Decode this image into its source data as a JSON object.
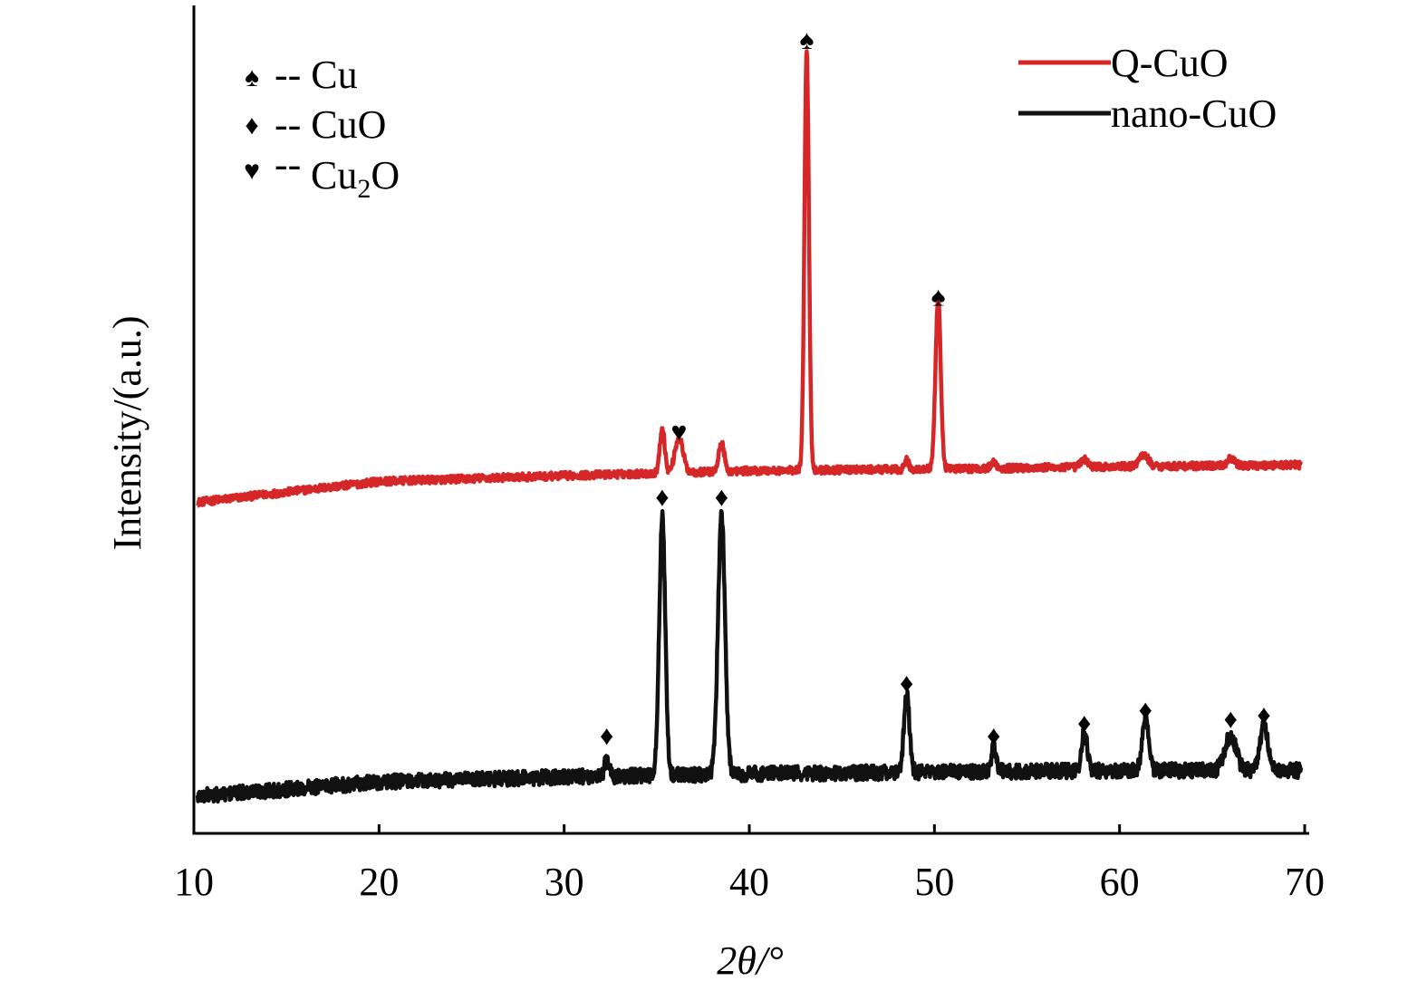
{
  "chart_data": {
    "type": "line",
    "xlabel": "2θ/°",
    "ylabel": "Intensity/(a.u.)",
    "xlim": [
      10,
      70
    ],
    "x_ticks": [
      "10",
      "20",
      "30",
      "40",
      "50",
      "60",
      "70"
    ],
    "y_ticks": "none",
    "grid": false,
    "legend_position": "top-right",
    "series": [
      {
        "name": "Q-CuO",
        "color": "#d62728",
        "baseline": [
          [
            10.2,
            0.4
          ],
          [
            20,
            0.425
          ],
          [
            30,
            0.432
          ],
          [
            40,
            0.438
          ],
          [
            50,
            0.44
          ],
          [
            60,
            0.443
          ],
          [
            69.8,
            0.445
          ]
        ],
        "peaks": [
          {
            "x": 35.3,
            "height": 0.055,
            "width": 0.13
          },
          {
            "x": 36.2,
            "height": 0.042,
            "width": 0.22
          },
          {
            "x": 38.5,
            "height": 0.036,
            "width": 0.14
          },
          {
            "x": 43.1,
            "height": 0.51,
            "width": 0.12
          },
          {
            "x": 48.5,
            "height": 0.012,
            "width": 0.1
          },
          {
            "x": 50.2,
            "height": 0.205,
            "width": 0.14
          },
          {
            "x": 53.2,
            "height": 0.007,
            "width": 0.15
          },
          {
            "x": 58.1,
            "height": 0.009,
            "width": 0.2
          },
          {
            "x": 61.3,
            "height": 0.014,
            "width": 0.25
          },
          {
            "x": 66.0,
            "height": 0.008,
            "width": 0.2
          }
        ]
      },
      {
        "name": "nano-CuO",
        "color": "#111111",
        "baseline": [
          [
            10.2,
            0.045
          ],
          [
            20,
            0.062
          ],
          [
            30,
            0.068
          ],
          [
            40,
            0.072
          ],
          [
            50,
            0.074
          ],
          [
            60,
            0.076
          ],
          [
            69.8,
            0.076
          ]
        ],
        "peaks": [
          {
            "x": 32.3,
            "height": 0.02,
            "width": 0.12
          },
          {
            "x": 35.3,
            "height": 0.315,
            "width": 0.16
          },
          {
            "x": 38.5,
            "height": 0.315,
            "width": 0.19
          },
          {
            "x": 48.5,
            "height": 0.095,
            "width": 0.15
          },
          {
            "x": 53.2,
            "height": 0.03,
            "width": 0.13
          },
          {
            "x": 58.1,
            "height": 0.048,
            "width": 0.15
          },
          {
            "x": 61.4,
            "height": 0.067,
            "width": 0.17
          },
          {
            "x": 66.0,
            "height": 0.042,
            "width": 0.3
          },
          {
            "x": 67.8,
            "height": 0.058,
            "width": 0.2
          }
        ]
      }
    ],
    "phase_legend": [
      {
        "symbol": "♠",
        "label": "-- Cu",
        "sub": ""
      },
      {
        "symbol": "♦",
        "label": "-- CuO",
        "sub": ""
      },
      {
        "symbol": "♥",
        "label_pre": "--",
        "label_main": "Cu",
        "label_sub": "2",
        "label_post": "O"
      }
    ],
    "annotations": [
      {
        "symbol": "♠",
        "x": 43.1,
        "y": 0.955
      },
      {
        "symbol": "♠",
        "x": 50.2,
        "y": 0.645
      },
      {
        "symbol": "♥",
        "x": 36.2,
        "y": 0.482
      },
      {
        "symbol": "♦",
        "x": 32.3,
        "y": 0.115
      },
      {
        "symbol": "♦",
        "x": 35.3,
        "y": 0.403
      },
      {
        "symbol": "♦",
        "x": 38.5,
        "y": 0.403
      },
      {
        "symbol": "♦",
        "x": 48.5,
        "y": 0.178
      },
      {
        "symbol": "♦",
        "x": 53.2,
        "y": 0.115
      },
      {
        "symbol": "♦",
        "x": 58.1,
        "y": 0.13
      },
      {
        "symbol": "♦",
        "x": 61.4,
        "y": 0.146
      },
      {
        "symbol": "♦",
        "x": 66.0,
        "y": 0.135
      },
      {
        "symbol": "♦",
        "x": 67.8,
        "y": 0.14
      }
    ]
  }
}
